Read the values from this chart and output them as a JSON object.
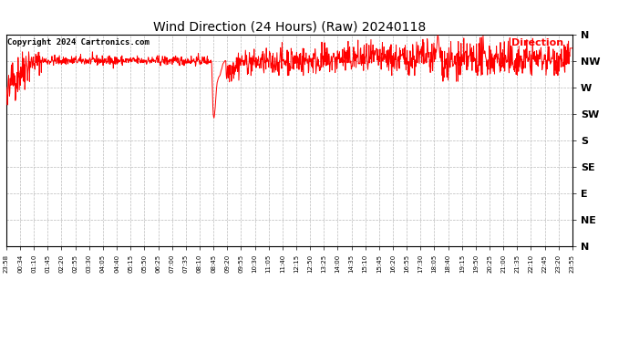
{
  "title": "Wind Direction (24 Hours) (Raw) 20240118",
  "copyright": "Copyright 2024 Cartronics.com",
  "legend_label": "Direction",
  "line_color": "#ff0000",
  "bg_color": "#ffffff",
  "grid_color": "#aaaaaa",
  "title_color": "#000000",
  "copyright_color": "#000000",
  "legend_color": "#ff0000",
  "ytick_labels": [
    "N",
    "NW",
    "W",
    "SW",
    "S",
    "SE",
    "E",
    "NE",
    "N"
  ],
  "ytick_values": [
    360,
    315,
    270,
    225,
    180,
    135,
    90,
    45,
    0
  ],
  "ylim": [
    0,
    360
  ],
  "xtick_labels": [
    "23:58",
    "00:34",
    "01:10",
    "01:45",
    "02:20",
    "02:55",
    "03:30",
    "04:05",
    "04:40",
    "05:15",
    "05:50",
    "06:25",
    "07:00",
    "07:35",
    "08:10",
    "08:45",
    "09:20",
    "09:55",
    "10:30",
    "11:05",
    "11:40",
    "12:15",
    "12:50",
    "13:25",
    "14:00",
    "14:35",
    "15:10",
    "15:45",
    "16:20",
    "16:55",
    "17:30",
    "18:05",
    "18:40",
    "19:15",
    "19:50",
    "20:25",
    "21:00",
    "21:35",
    "22:10",
    "22:45",
    "23:20",
    "23:55"
  ],
  "figsize": [
    6.9,
    3.75
  ],
  "dpi": 100
}
